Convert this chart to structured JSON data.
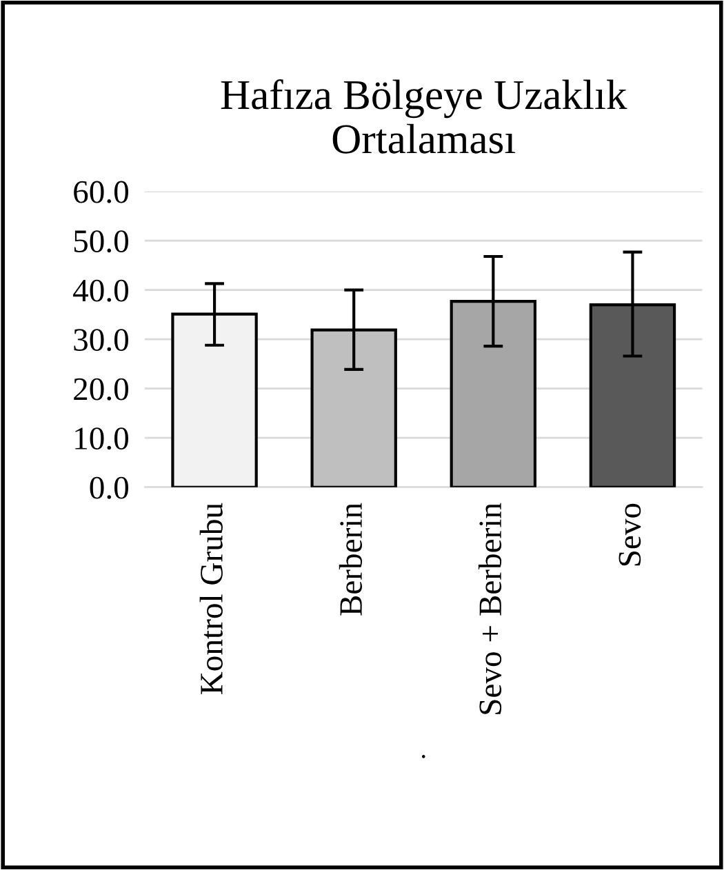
{
  "chart_data": {
    "type": "bar",
    "title": "Hafıza Bölgeye Uzaklık\nOrtalaması",
    "xlabel": ".",
    "categories": [
      "Kontrol Grubu",
      "Berberin",
      "Sevo + Berberin",
      "Sevo"
    ],
    "values": [
      35.1,
      31.9,
      37.7,
      37.0
    ],
    "colors": [
      "#f2f2f2",
      "#bfbfbf",
      "#a6a6a6",
      "#595959"
    ],
    "errors": [
      [
        28.8,
        41.3
      ],
      [
        23.9,
        40.0
      ],
      [
        28.6,
        46.8
      ],
      [
        26.6,
        47.7
      ]
    ],
    "ylim": [
      0,
      60
    ],
    "yticks": [
      {
        "value": 0,
        "label": "0.0"
      },
      {
        "value": 10,
        "label": "10.0"
      },
      {
        "value": 20,
        "label": "20.0"
      },
      {
        "value": 30,
        "label": "30.0"
      },
      {
        "value": 40,
        "label": "40.0"
      },
      {
        "value": 50,
        "label": "50.0"
      },
      {
        "value": 60,
        "label": "60.0"
      }
    ],
    "grid": "y"
  }
}
